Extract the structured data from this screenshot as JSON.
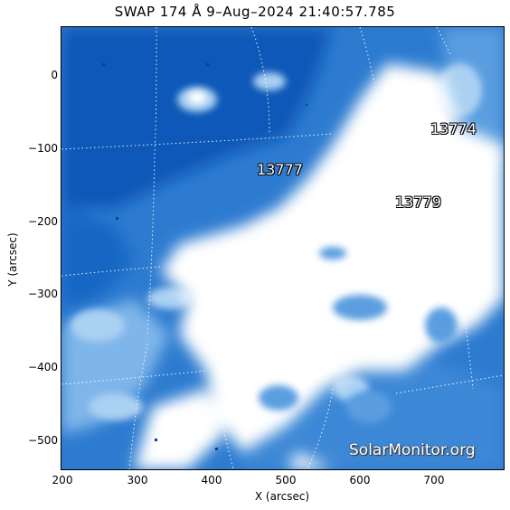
{
  "title": "SWAP 174 Å  9–Aug–2024 21:40:57.785",
  "axes": {
    "xlabel": "X (arcsec)",
    "ylabel": "Y (arcsec)",
    "xticks": [
      "200",
      "300",
      "400",
      "500",
      "600",
      "700"
    ],
    "yticks": [
      "0",
      "−100",
      "−200",
      "−300",
      "−400",
      "−500"
    ]
  },
  "regions": [
    {
      "id": "13774",
      "label": "13774"
    },
    {
      "id": "13777",
      "label": "13777"
    },
    {
      "id": "13779",
      "label": "13779"
    }
  ],
  "watermark": "SolarMonitor.org",
  "colors": {
    "dark_blue": "#0a58b8",
    "mid_blue": "#3a85d6",
    "light_blue": "#9cc8ef",
    "white": "#ffffff"
  }
}
